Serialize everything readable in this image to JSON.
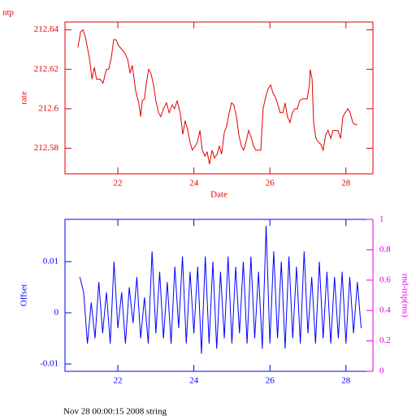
{
  "chart_data": [
    {
      "type": "line",
      "title": "ntp",
      "x_label": "Date",
      "y_label": "rate",
      "color": "#e00000",
      "xlim": [
        20.61,
        28.71
      ],
      "xticks": [
        22,
        24,
        26,
        28
      ],
      "ylim": [
        212.567,
        212.644
      ],
      "yticks": [
        212.58,
        212.6,
        212.62,
        212.64
      ],
      "x": [
        20.95,
        21.02,
        21.08,
        21.14,
        21.25,
        21.32,
        21.38,
        21.44,
        21.53,
        21.61,
        21.7,
        21.76,
        21.83,
        21.89,
        21.95,
        22.02,
        22.11,
        22.19,
        22.26,
        22.32,
        22.38,
        22.47,
        22.55,
        22.6,
        22.64,
        22.7,
        22.75,
        22.81,
        22.87,
        22.94,
        23.0,
        23.07,
        23.13,
        23.2,
        23.28,
        23.35,
        23.43,
        23.49,
        23.56,
        23.64,
        23.71,
        23.77,
        23.84,
        23.9,
        23.96,
        24.03,
        24.09,
        24.16,
        24.22,
        24.29,
        24.35,
        24.41,
        24.48,
        24.54,
        24.61,
        24.67,
        24.73,
        24.8,
        24.86,
        24.93,
        24.99,
        25.05,
        25.12,
        25.18,
        25.25,
        25.31,
        25.37,
        25.44,
        25.5,
        25.57,
        25.63,
        25.7,
        25.76,
        25.82,
        25.89,
        25.95,
        26.02,
        26.08,
        26.14,
        26.21,
        26.27,
        26.34,
        26.4,
        26.46,
        26.53,
        26.59,
        26.66,
        26.72,
        26.78,
        26.85,
        26.91,
        26.98,
        27.04,
        27.06,
        27.11,
        27.15,
        27.21,
        27.28,
        27.34,
        27.4,
        27.47,
        27.53,
        27.6,
        27.66,
        27.73,
        27.79,
        27.86,
        27.92,
        27.98,
        28.05,
        28.11,
        28.18,
        28.24,
        28.3
      ],
      "values": [
        212.631,
        212.639,
        212.64,
        212.637,
        212.626,
        212.615,
        212.621,
        212.615,
        212.615,
        212.613,
        212.62,
        212.62,
        212.626,
        212.635,
        212.635,
        212.632,
        212.63,
        212.628,
        212.625,
        212.618,
        212.622,
        212.609,
        212.603,
        212.596,
        212.604,
        212.605,
        212.613,
        212.62,
        212.618,
        212.612,
        212.604,
        212.598,
        212.596,
        212.6,
        212.603,
        212.598,
        212.602,
        212.6,
        212.604,
        212.598,
        212.587,
        212.594,
        212.589,
        212.583,
        212.579,
        212.581,
        212.583,
        212.589,
        212.579,
        212.576,
        212.578,
        212.572,
        212.579,
        212.575,
        212.577,
        212.581,
        212.577,
        212.588,
        212.591,
        212.598,
        212.603,
        212.602,
        212.596,
        212.587,
        212.581,
        212.579,
        212.583,
        212.589,
        212.586,
        212.581,
        212.579,
        212.579,
        212.579,
        212.6,
        212.606,
        212.61,
        212.612,
        212.608,
        212.606,
        212.602,
        212.598,
        212.598,
        212.603,
        212.596,
        212.593,
        212.598,
        212.6,
        212.6,
        212.604,
        212.605,
        212.605,
        212.605,
        212.612,
        212.62,
        212.615,
        212.593,
        212.585,
        212.583,
        212.582,
        212.579,
        212.587,
        212.589,
        212.585,
        212.589,
        212.589,
        212.589,
        212.585,
        212.596,
        212.598,
        212.6,
        212.598,
        212.593,
        212.592,
        212.592
      ]
    },
    {
      "type": "line",
      "y_label": "Offset",
      "y2_label": "rnd-trip(ms)",
      "color": "#0000ff",
      "y2_color": "#e000e0",
      "xlim": [
        20.61,
        28.71
      ],
      "xticks": [
        22,
        24,
        26,
        28
      ],
      "ylim": [
        -0.01143,
        0.01825
      ],
      "yticks": [
        -0.01,
        0,
        0.01
      ],
      "y2lim": [
        0,
        1
      ],
      "y2ticks": [
        0,
        0.2,
        0.4,
        0.6,
        0.8,
        1
      ],
      "x": [
        21.0,
        21.1,
        21.2,
        21.3,
        21.4,
        21.5,
        21.6,
        21.7,
        21.8,
        21.9,
        22.0,
        22.1,
        22.2,
        22.3,
        22.4,
        22.5,
        22.6,
        22.7,
        22.8,
        22.9,
        23.0,
        23.1,
        23.2,
        23.3,
        23.4,
        23.5,
        23.6,
        23.7,
        23.8,
        23.9,
        24.0,
        24.1,
        24.2,
        24.3,
        24.4,
        24.5,
        24.6,
        24.7,
        24.8,
        24.9,
        25.0,
        25.1,
        25.2,
        25.3,
        25.4,
        25.5,
        25.6,
        25.7,
        25.8,
        25.9,
        26.0,
        26.1,
        26.2,
        26.3,
        26.4,
        26.5,
        26.6,
        26.7,
        26.8,
        26.9,
        27.0,
        27.1,
        27.2,
        27.3,
        27.4,
        27.5,
        27.6,
        27.7,
        27.8,
        27.9,
        28.0,
        28.1,
        28.2,
        28.3,
        28.4
      ],
      "values": [
        0.007,
        0.004,
        -0.006,
        0.002,
        -0.005,
        0.006,
        -0.004,
        0.004,
        -0.006,
        0.01,
        -0.003,
        0.004,
        -0.006,
        0.005,
        -0.002,
        0.007,
        -0.005,
        0.003,
        -0.006,
        0.012,
        -0.004,
        0.008,
        -0.005,
        0.006,
        -0.006,
        0.009,
        -0.003,
        0.011,
        -0.006,
        0.008,
        -0.004,
        0.009,
        -0.008,
        0.011,
        -0.006,
        0.01,
        -0.007,
        0.008,
        -0.005,
        0.011,
        -0.006,
        0.009,
        -0.004,
        0.01,
        -0.006,
        0.011,
        -0.005,
        0.008,
        -0.007,
        0.017,
        -0.006,
        0.012,
        -0.005,
        0.01,
        -0.007,
        0.011,
        -0.005,
        0.009,
        -0.006,
        0.012,
        -0.004,
        0.007,
        -0.006,
        0.01,
        -0.005,
        0.008,
        -0.006,
        0.007,
        -0.005,
        0.008,
        -0.006,
        0.007,
        -0.004,
        0.006,
        -0.003
      ]
    }
  ],
  "footer": "Nov 28 00:00:15 2008 string"
}
